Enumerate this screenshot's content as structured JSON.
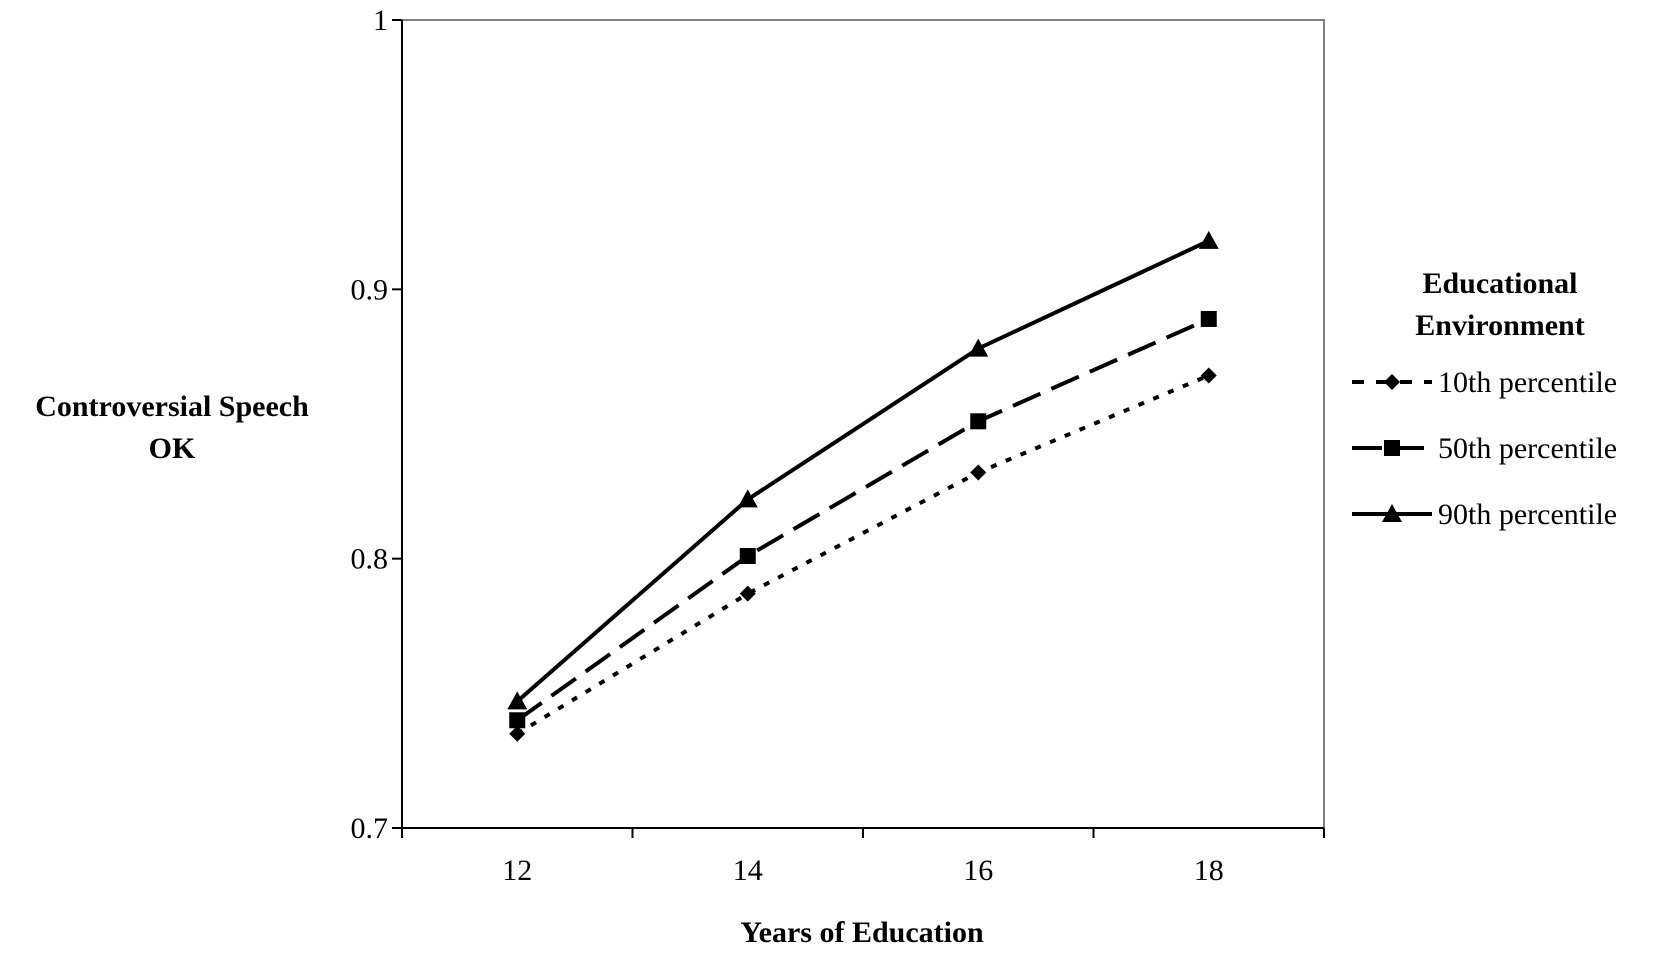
{
  "chart_data": {
    "type": "line",
    "title": "",
    "xlabel": "Years of Education",
    "ylabel_lines": [
      "Controversial Speech",
      "OK"
    ],
    "x": [
      12,
      14,
      16,
      18
    ],
    "xlim": [
      11,
      19
    ],
    "xticks": [
      12,
      14,
      16,
      18
    ],
    "ylim": [
      0.7,
      1.0
    ],
    "yticks": [
      0.7,
      0.8,
      0.9,
      1.0
    ],
    "ytick_labels": [
      "0.7",
      "0.8",
      "0.9",
      "1"
    ],
    "grid": false,
    "legend": {
      "title_lines": [
        "Educational",
        "Environment"
      ],
      "placement": "right"
    },
    "series": [
      {
        "name": "10th percentile",
        "marker": "diamond",
        "dash": "dotted",
        "values": [
          0.735,
          0.787,
          0.832,
          0.868
        ]
      },
      {
        "name": "50th percentile",
        "marker": "square",
        "dash": "dashed",
        "values": [
          0.74,
          0.801,
          0.851,
          0.889
        ]
      },
      {
        "name": "90th percentile",
        "marker": "triangle",
        "dash": "solid",
        "values": [
          0.747,
          0.822,
          0.878,
          0.918
        ]
      }
    ],
    "colors": {
      "line": "#000000",
      "axis": "#000000"
    }
  }
}
